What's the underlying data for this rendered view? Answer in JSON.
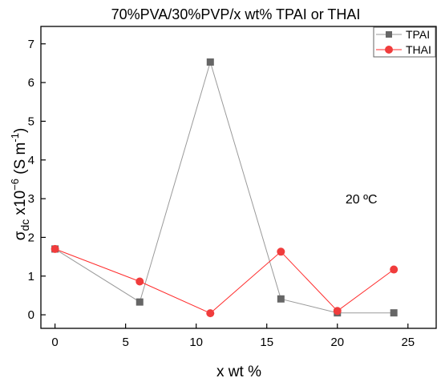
{
  "chart_data": {
    "type": "line",
    "title": "70%PVA/30%PVP/x wt% TPAI or THAI",
    "xlabel": "x wt %",
    "ylabel": {
      "main": "σ",
      "sub": "dc",
      "mid": " x10",
      "sup": "−6",
      "unit_open": " (S m",
      "unit_sup": "-1",
      "unit_close": ")"
    },
    "xlim": [
      -1,
      27
    ],
    "ylim": [
      -0.35,
      7.45
    ],
    "xticks": [
      0,
      5,
      10,
      15,
      20,
      25
    ],
    "yticks": [
      0,
      1,
      2,
      3,
      4,
      5,
      6,
      7
    ],
    "grid": false,
    "legend_position": "top-right",
    "annotation": {
      "text": "20 ºC",
      "x": 21.7,
      "y": 3.0
    },
    "series": [
      {
        "name": "TPAI",
        "marker": "square",
        "color": "#666666",
        "line_color": "#9a9a9a",
        "x": [
          0,
          6,
          11,
          16,
          20,
          24
        ],
        "y": [
          1.7,
          0.33,
          6.53,
          0.41,
          0.05,
          0.05
        ]
      },
      {
        "name": "THAI",
        "marker": "circle",
        "color": "#f03c3c",
        "line_color": "#ff2b2b",
        "x": [
          0,
          6,
          11,
          16,
          20,
          24
        ],
        "y": [
          1.7,
          0.86,
          0.04,
          1.63,
          0.1,
          1.17
        ]
      }
    ]
  }
}
